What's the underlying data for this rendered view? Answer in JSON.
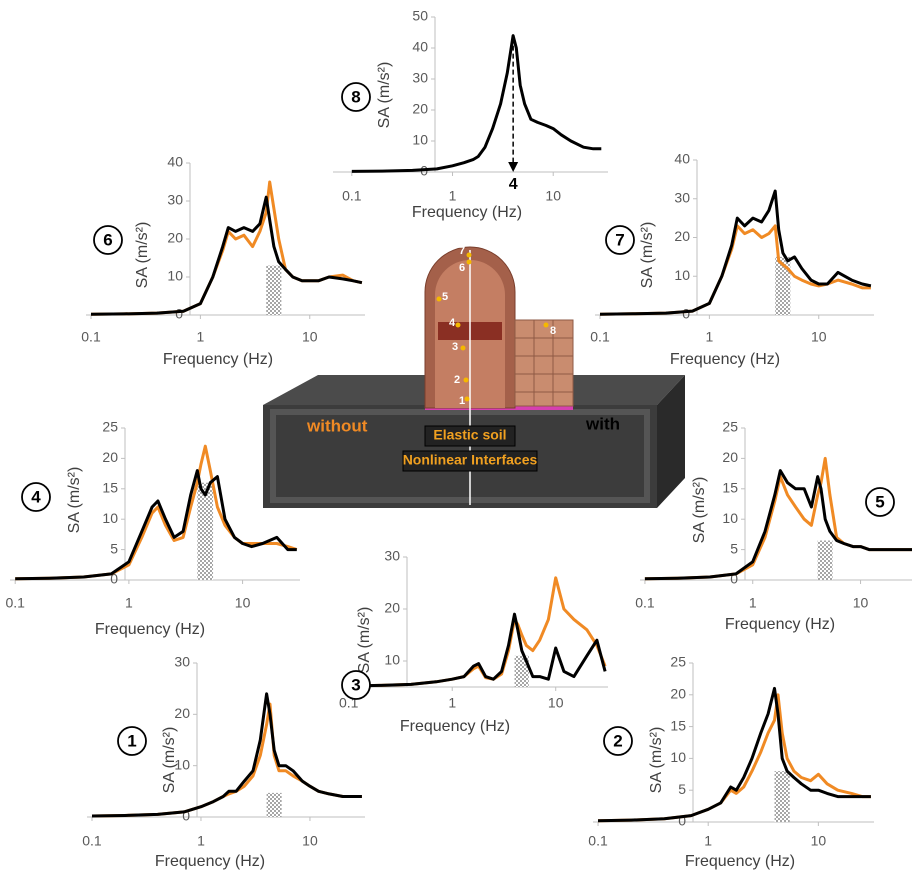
{
  "chart_data": [
    {
      "type": "line",
      "panel": "1",
      "xlabel": "Frequency (Hz)",
      "ylabel": "SA (m/s²)",
      "log_x": true,
      "xlim": [
        0.09,
        32
      ],
      "xticks": [
        0.1,
        1,
        10
      ],
      "ylim": [
        0,
        30
      ],
      "yticks": [
        0,
        10,
        20,
        30
      ],
      "shaded_x": [
        4,
        5.5
      ],
      "shaded_top": 4.7,
      "x": [
        0.1,
        0.2,
        0.4,
        0.7,
        1,
        1.3,
        1.6,
        1.8,
        2.1,
        2.5,
        3,
        3.5,
        4,
        4.3,
        4.7,
        5.2,
        6,
        7,
        8.5,
        10,
        12,
        15,
        20,
        25,
        30
      ],
      "series": [
        {
          "name": "without",
          "color": "#f08a24",
          "values": [
            0.2,
            0.3,
            0.5,
            1,
            2,
            3,
            4,
            4.5,
            5,
            6,
            8,
            12,
            18,
            22,
            12,
            9,
            9,
            8,
            7,
            6,
            5,
            4.5,
            4,
            4,
            4
          ]
        },
        {
          "name": "with",
          "color": "#000000",
          "values": [
            0.2,
            0.3,
            0.5,
            1,
            2,
            3,
            4,
            5,
            5,
            7,
            9,
            15,
            24,
            20,
            13,
            10,
            10,
            9,
            7,
            6,
            5,
            4.5,
            4,
            4,
            4
          ]
        }
      ]
    },
    {
      "type": "line",
      "panel": "2",
      "xlabel": "Frequency (Hz)",
      "ylabel": "SA (m/s²)",
      "log_x": true,
      "xlim": [
        0.09,
        32
      ],
      "xticks": [
        0.1,
        1,
        10
      ],
      "ylim": [
        0,
        25
      ],
      "yticks": [
        0,
        5,
        10,
        15,
        20,
        25
      ],
      "shaded_x": [
        4,
        5.5
      ],
      "shaded_top": 8,
      "x": [
        0.1,
        0.2,
        0.4,
        0.7,
        1,
        1.3,
        1.6,
        1.8,
        2.1,
        2.5,
        3,
        3.5,
        4,
        4.3,
        4.7,
        5.2,
        6,
        7,
        8.5,
        10,
        12,
        15,
        20,
        25,
        30
      ],
      "series": [
        {
          "color": "#f08a24",
          "values": [
            0.2,
            0.3,
            0.5,
            1,
            2,
            3,
            5,
            4.5,
            5.5,
            8,
            11,
            14,
            16,
            20,
            14,
            10,
            8,
            7,
            6.5,
            7.5,
            6,
            5,
            4.5,
            4,
            4
          ]
        },
        {
          "color": "#000000",
          "values": [
            0.2,
            0.3,
            0.5,
            1,
            2,
            3,
            5.5,
            5,
            7,
            10,
            14,
            17,
            21,
            17,
            10,
            8,
            7,
            6,
            5,
            5,
            4.5,
            4,
            4,
            4,
            4
          ]
        }
      ]
    },
    {
      "type": "line",
      "panel": "3",
      "xlabel": "Frequency (Hz)",
      "ylabel": "SA (m/s²)",
      "log_x": true,
      "xlim": [
        0.09,
        32
      ],
      "xticks": [
        0.1,
        1,
        10
      ],
      "ylim": [
        5,
        30
      ],
      "yticks": [
        10,
        20,
        30
      ],
      "shaded_x": [
        4,
        5.5
      ],
      "shaded_top": 11,
      "x": [
        0.1,
        0.2,
        0.4,
        0.7,
        1,
        1.3,
        1.6,
        1.8,
        2.1,
        2.5,
        3,
        3.5,
        4,
        4.3,
        4.7,
        5.2,
        6,
        7,
        8.5,
        10,
        12,
        15,
        20,
        25,
        30
      ],
      "series": [
        {
          "color": "#f08a24",
          "values": [
            5.2,
            5.3,
            5.5,
            6,
            6.5,
            7,
            8.5,
            9,
            6.8,
            6.5,
            7.5,
            12,
            18,
            17,
            15,
            13,
            12,
            14,
            18,
            26,
            20,
            18,
            16,
            13,
            9
          ]
        },
        {
          "color": "#000000",
          "values": [
            5.2,
            5.3,
            5.5,
            6,
            6.5,
            7,
            9,
            9.5,
            7,
            6.5,
            8,
            13,
            19,
            16,
            12,
            10,
            7,
            7,
            6.5,
            12.5,
            8,
            7,
            11,
            14,
            8
          ]
        }
      ]
    },
    {
      "type": "line",
      "panel": "4",
      "xlabel": "Frequency (Hz)",
      "ylabel": "SA (m/s²)",
      "log_x": true,
      "xlim": [
        0.09,
        32
      ],
      "xticks": [
        0.1,
        1,
        10
      ],
      "ylim": [
        0,
        25
      ],
      "yticks": [
        0,
        5,
        10,
        15,
        20,
        25
      ],
      "shaded_x": [
        4,
        5.5
      ],
      "shaded_top": 16,
      "x": [
        0.1,
        0.2,
        0.4,
        0.7,
        1,
        1.3,
        1.6,
        1.8,
        2.1,
        2.5,
        3,
        3.5,
        4,
        4.3,
        4.7,
        5.2,
        6,
        7,
        8.5,
        10,
        12,
        15,
        20,
        25,
        30
      ],
      "series": [
        {
          "color": "#f08a24",
          "values": [
            0.2,
            0.3,
            0.5,
            1,
            2.5,
            7,
            11,
            12,
            9,
            6.5,
            7,
            12,
            16,
            19,
            22,
            18,
            12,
            9,
            7,
            6,
            6,
            6,
            6,
            5.5,
            5
          ]
        },
        {
          "color": "#000000",
          "values": [
            0.2,
            0.3,
            0.5,
            1,
            3,
            8,
            12,
            13,
            10,
            7,
            8,
            14,
            18,
            15,
            14,
            16,
            17,
            10,
            7,
            6,
            5.5,
            6,
            7,
            5,
            5
          ]
        }
      ]
    },
    {
      "type": "line",
      "panel": "5",
      "xlabel": "Frequency (Hz)",
      "ylabel": "SA (m/s²)",
      "log_x": true,
      "xlim": [
        0.09,
        30
      ],
      "xticks": [
        0.1,
        1,
        10
      ],
      "ylim": [
        0,
        25
      ],
      "yticks": [
        0,
        5,
        10,
        15,
        20,
        25
      ],
      "shaded_x": [
        4,
        5.5
      ],
      "shaded_top": 6.5,
      "x": [
        0.1,
        0.2,
        0.4,
        0.7,
        1,
        1.3,
        1.6,
        1.8,
        2.1,
        2.5,
        3,
        3.5,
        4,
        4.3,
        4.7,
        5.2,
        6,
        7,
        8.5,
        10,
        12,
        15,
        20,
        25,
        30
      ],
      "series": [
        {
          "color": "#f08a24",
          "values": [
            0.2,
            0.3,
            0.5,
            1,
            2.5,
            7,
            13,
            17,
            14,
            12,
            10,
            9,
            14,
            16,
            20,
            14,
            7,
            6,
            5.5,
            5.5,
            5,
            5,
            5,
            5,
            5
          ]
        },
        {
          "color": "#000000",
          "values": [
            0.2,
            0.3,
            0.5,
            1,
            3,
            8,
            14,
            18,
            16,
            15,
            15,
            12,
            17,
            15,
            10,
            8,
            6.5,
            6,
            5.5,
            5.5,
            5,
            5,
            5,
            5,
            5
          ]
        }
      ]
    },
    {
      "type": "line",
      "panel": "6",
      "xlabel": "Frequency (Hz)",
      "ylabel": "SA (m/s²)",
      "log_x": true,
      "xlim": [
        0.09,
        32
      ],
      "xticks": [
        0.1,
        1,
        10
      ],
      "ylim": [
        0,
        40
      ],
      "yticks": [
        0,
        10,
        20,
        30,
        40
      ],
      "shaded_x": [
        4,
        5.5
      ],
      "shaded_top": 13,
      "x": [
        0.1,
        0.2,
        0.4,
        0.7,
        1,
        1.3,
        1.6,
        1.8,
        2.1,
        2.5,
        3,
        3.5,
        4,
        4.3,
        4.7,
        5.2,
        6,
        7,
        8.5,
        10,
        12,
        15,
        20,
        25,
        30
      ],
      "series": [
        {
          "color": "#f08a24",
          "values": [
            0.2,
            0.3,
            0.5,
            1,
            3,
            10,
            17,
            22,
            20,
            21,
            18,
            22,
            27,
            35,
            28,
            20,
            12,
            10,
            9,
            9,
            9,
            10,
            10.5,
            9,
            8.5
          ]
        },
        {
          "color": "#000000",
          "values": [
            0.2,
            0.3,
            0.5,
            1,
            3,
            10,
            18,
            23,
            22,
            23,
            22,
            24,
            31,
            25,
            18,
            14,
            12,
            10,
            9,
            9,
            9,
            10,
            9.5,
            9,
            8.5
          ]
        }
      ]
    },
    {
      "type": "line",
      "panel": "7",
      "xlabel": "Frequency (Hz)",
      "ylabel": "SA (m/s²)",
      "log_x": true,
      "xlim": [
        0.09,
        32
      ],
      "xticks": [
        0.1,
        1,
        10
      ],
      "ylim": [
        0,
        40
      ],
      "yticks": [
        0,
        10,
        20,
        30,
        40
      ],
      "shaded_x": [
        4,
        5.5
      ],
      "shaded_top": 15,
      "x": [
        0.1,
        0.2,
        0.4,
        0.7,
        1,
        1.3,
        1.6,
        1.8,
        2.1,
        2.5,
        3,
        3.5,
        4,
        4.3,
        4.7,
        5.2,
        6,
        7,
        8.5,
        10,
        12,
        15,
        20,
        25,
        30
      ],
      "series": [
        {
          "color": "#f08a24",
          "values": [
            0.2,
            0.3,
            0.5,
            1,
            3,
            10,
            17,
            23,
            21,
            22,
            20,
            21,
            23,
            14,
            13,
            12,
            10,
            9,
            8,
            7.5,
            8,
            9,
            8,
            7,
            7
          ]
        },
        {
          "color": "#000000",
          "values": [
            0.2,
            0.3,
            0.5,
            1,
            3,
            10,
            18,
            25,
            23,
            25,
            24,
            27,
            32,
            22,
            16,
            14,
            15,
            12,
            9,
            8,
            8,
            11,
            9,
            8,
            7.5
          ]
        }
      ]
    },
    {
      "type": "line",
      "panel": "8",
      "xlabel": "Frequency (Hz)",
      "ylabel": "SA (m/s²)",
      "log_x": true,
      "xlim": [
        0.065,
        35
      ],
      "xticks": [
        0.1,
        1,
        10
      ],
      "ylim": [
        0,
        50
      ],
      "yticks": [
        0,
        10,
        20,
        30,
        40,
        50
      ],
      "annotation_x": 4,
      "x": [
        0.1,
        0.2,
        0.4,
        0.7,
        1,
        1.3,
        1.6,
        1.8,
        2.1,
        2.5,
        3,
        3.5,
        4,
        4.3,
        4.7,
        5.2,
        6,
        7,
        8.5,
        10,
        12,
        15,
        20,
        25,
        30
      ],
      "series": [
        {
          "color": "#000000",
          "values": [
            0.2,
            0.3,
            0.5,
            1,
            2,
            3,
            4,
            5,
            8,
            14,
            22,
            32,
            44,
            40,
            28,
            22,
            17,
            16,
            15,
            14,
            12,
            10,
            8,
            7.5,
            7.5
          ]
        }
      ]
    }
  ],
  "scene": {
    "soil_label": "Elastic soil",
    "interface_label": "Nonlinear Interfaces",
    "points": [
      "1",
      "2",
      "3",
      "4",
      "5",
      "6",
      "7",
      "8"
    ]
  }
}
